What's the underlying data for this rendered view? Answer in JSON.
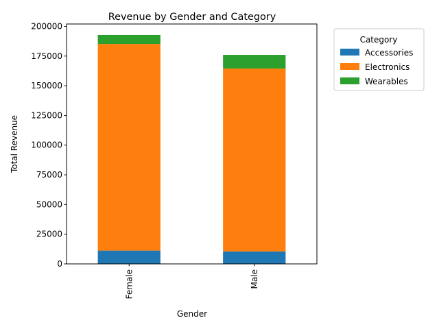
{
  "chart_data": {
    "type": "bar",
    "stacked": true,
    "title": "Revenue by Gender and Category",
    "xlabel": "Gender",
    "ylabel": "Total Revenue",
    "categories": [
      "Female",
      "Male"
    ],
    "series": [
      {
        "name": "Accessories",
        "values": [
          11200,
          10500
        ],
        "color": "#1f77b4"
      },
      {
        "name": "Electronics",
        "values": [
          174000,
          154000
        ],
        "color": "#ff7f0e"
      },
      {
        "name": "Wearables",
        "values": [
          7600,
          11500
        ],
        "color": "#2ca02c"
      }
    ],
    "ylim": [
      0,
      202000
    ],
    "yticks": [
      0,
      25000,
      50000,
      75000,
      100000,
      125000,
      150000,
      175000,
      200000
    ],
    "legend": {
      "title": "Category",
      "placement": "outside-right"
    },
    "grid": false
  }
}
